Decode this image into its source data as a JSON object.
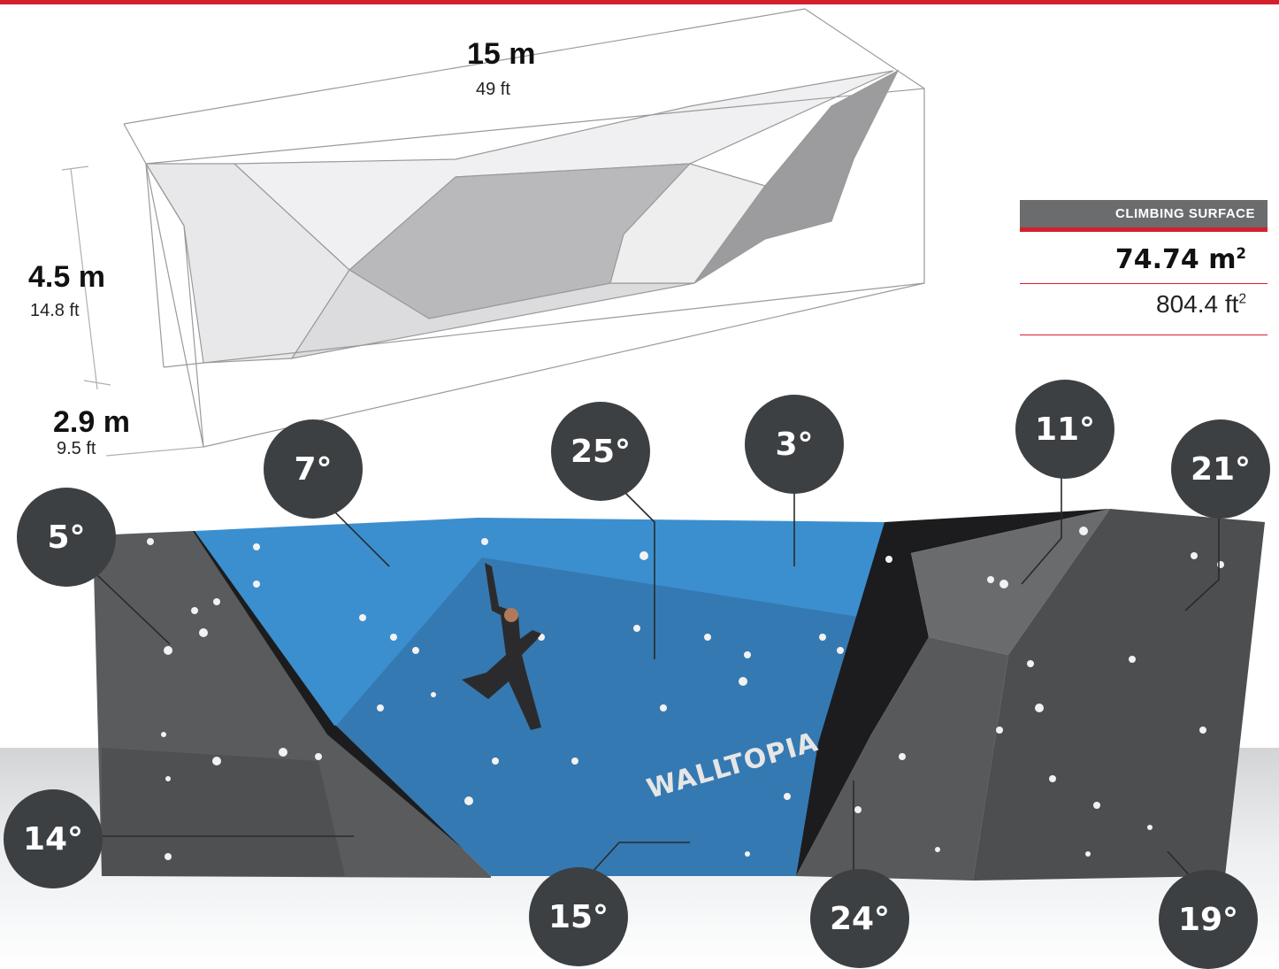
{
  "dimensions": {
    "length": {
      "metric": "15 m",
      "imperial": "49 ft"
    },
    "height": {
      "metric": "4.5 m",
      "imperial": "14.8 ft"
    },
    "depth": {
      "metric": "2.9 m",
      "imperial": "9.5 ft"
    }
  },
  "climbing_surface": {
    "label": "CLIMBING SURFACE",
    "metric_value": "74.74 m",
    "metric_unit_exp": "2",
    "imperial_value": "804.4 ft",
    "imperial_unit_exp": "2"
  },
  "brand": "WALLTOPIA",
  "angles": [
    "5°",
    "7°",
    "25°",
    "3°",
    "11°",
    "21°",
    "14°",
    "15°",
    "24°",
    "19°"
  ],
  "colors": {
    "accent": "#d4202c",
    "badge": "#3c4043",
    "panel_blue": "#3a8fcf",
    "panel_grey": "#5a5b5d"
  }
}
